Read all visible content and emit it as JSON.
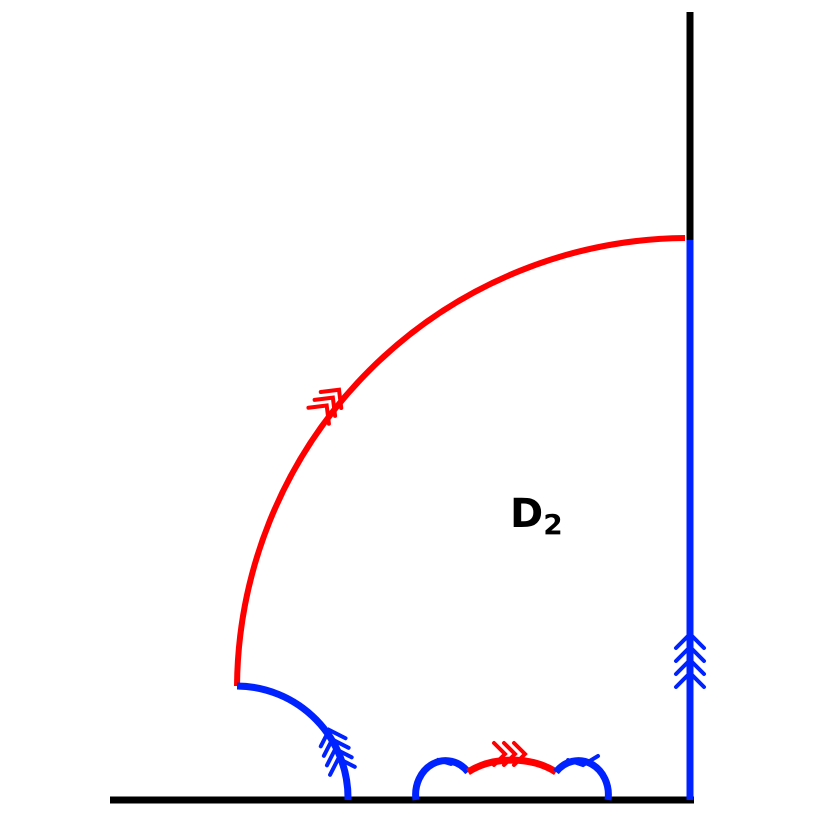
{
  "region_label": {
    "letter": "D",
    "subscript": "2"
  },
  "colors": {
    "axis": "#000000",
    "red_edge": "#ff0000",
    "blue_edge": "#0022ff"
  }
}
